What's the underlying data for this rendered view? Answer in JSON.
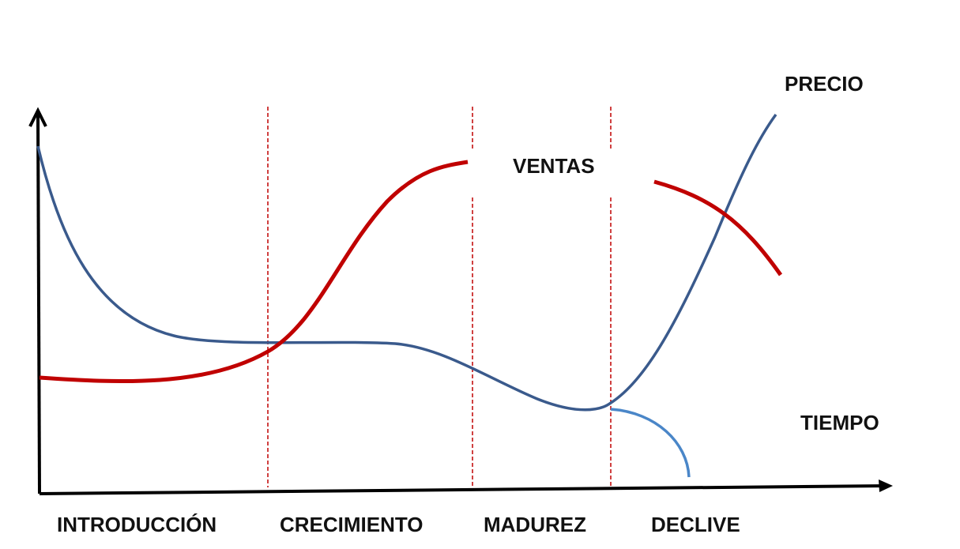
{
  "diagram": {
    "phases": [
      {
        "key": "introduction",
        "label": "INTRODUCCIÓN"
      },
      {
        "key": "growth",
        "label": "CRECIMIENTO"
      },
      {
        "key": "maturity",
        "label": "MADUREZ"
      },
      {
        "key": "decline",
        "label": "DECLIVE"
      }
    ],
    "labels": {
      "price": "PRECIO",
      "sales": "VENTAS",
      "time": "TIEMPO"
    },
    "colors": {
      "sales": "#c00000",
      "price": "#3a5a8c",
      "price_branch": "#4a86c8",
      "divider": "#c00000",
      "axis": "#000000"
    }
  }
}
